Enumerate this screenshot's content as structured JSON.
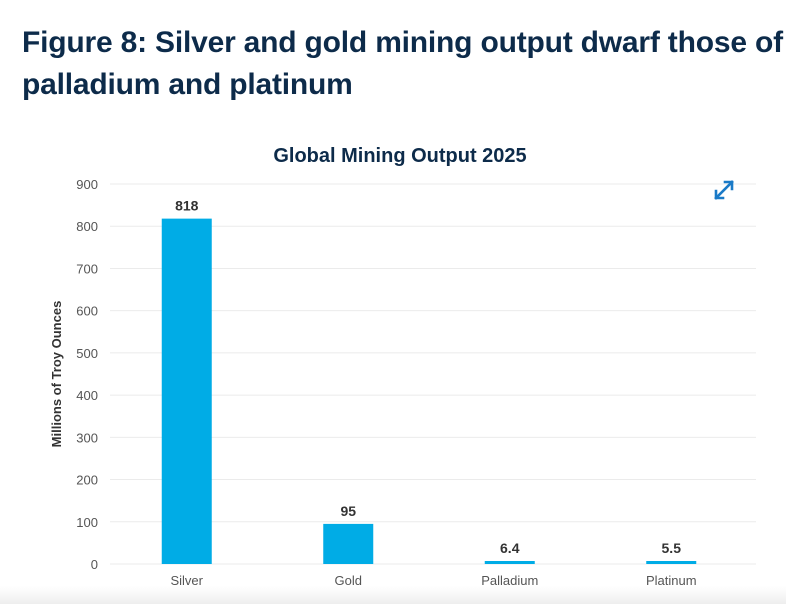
{
  "figure": {
    "title": "Figure 8: Silver and gold mining output dwarf those of palladium and platinum"
  },
  "controls": {
    "expand_icon": "expand-arrows-icon"
  },
  "colors": {
    "bar": "#00ace6",
    "title": "#0d2b4a",
    "grid": "#ebebeb",
    "tick_text": "#555555",
    "label_text": "#333333",
    "icon": "#1a7ac7"
  },
  "chart_data": {
    "type": "bar",
    "title": "Global Mining Output 2025",
    "xlabel": "",
    "ylabel": "Millions of Troy Ounces",
    "categories": [
      "Silver",
      "Gold",
      "Palladium",
      "Platinum"
    ],
    "values": [
      818,
      95,
      6.4,
      5.5
    ],
    "data_labels": [
      "818",
      "95",
      "6.4",
      "5.5"
    ],
    "ylim": [
      0,
      900
    ],
    "yticks": [
      0,
      100,
      200,
      300,
      400,
      500,
      600,
      700,
      800,
      900
    ],
    "grid": true,
    "legend": "none"
  }
}
